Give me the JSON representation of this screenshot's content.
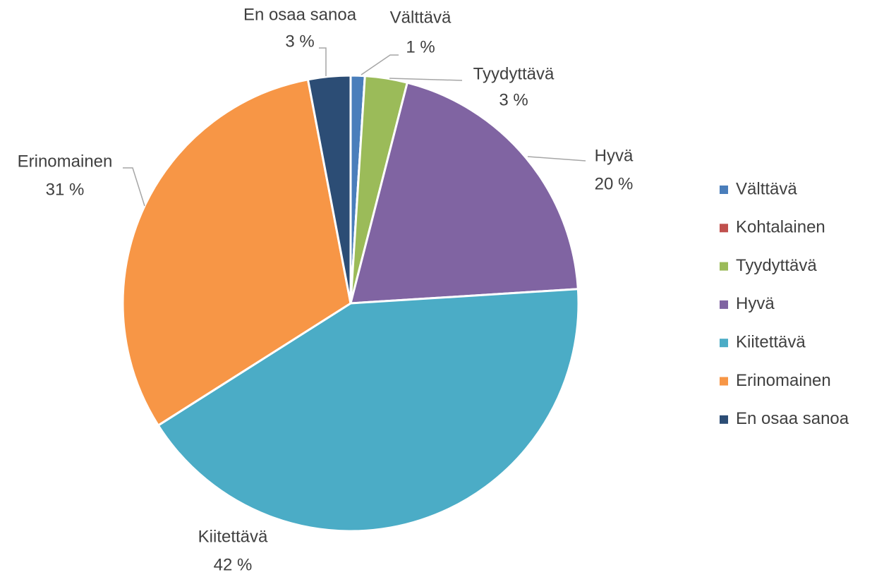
{
  "chart_data": {
    "type": "pie",
    "categories": [
      "Välttävä",
      "Kohtalainen",
      "Tyydyttävä",
      "Hyvä",
      "Kiitettävä",
      "Erinomainen",
      "En osaa sanoa"
    ],
    "values": [
      1,
      0,
      3,
      20,
      42,
      31,
      3
    ],
    "value_labels": [
      "1 %",
      null,
      "3 %",
      "20 %",
      "42 %",
      "31 %",
      "3 %"
    ],
    "colors": [
      "#4a7ebb",
      "#c0504d",
      "#9bbb59",
      "#8064a2",
      "#4bacc6",
      "#f79646",
      "#2c4d75"
    ],
    "legend": "right"
  }
}
